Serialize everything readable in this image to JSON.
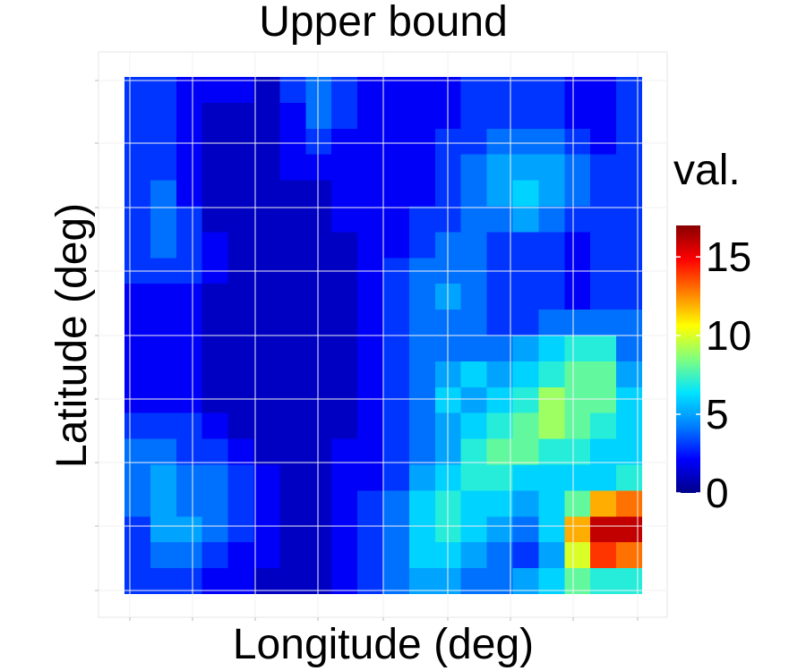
{
  "chart_data": {
    "type": "heatmap",
    "title": "Upper bound",
    "xlabel": "Longitude (deg)",
    "ylabel": "Latitude (deg)",
    "legend": {
      "title": "val.",
      "placement": "right",
      "range": [
        0,
        17
      ],
      "ticks": [
        0,
        5,
        10,
        15
      ],
      "tick_labels": [
        "0",
        "5",
        "10",
        "15"
      ]
    },
    "colorscale": [
      "#00008b",
      "#0000ff",
      "#0080ff",
      "#00e5ff",
      "#80ff80",
      "#ffff00",
      "#ff8000",
      "#ff0000",
      "#8b0000"
    ],
    "grid": true,
    "x_tick_labels": [],
    "y_tick_labels": [],
    "z": [
      [
        3,
        3,
        2,
        2,
        2,
        1,
        3,
        4,
        3,
        2,
        2,
        2,
        2,
        3,
        3,
        3,
        3,
        2,
        2,
        3
      ],
      [
        3,
        3,
        2,
        1,
        1,
        1,
        2,
        4,
        3,
        2,
        2,
        2,
        2,
        3,
        3,
        3,
        3,
        2,
        2,
        3
      ],
      [
        3,
        3,
        2,
        1,
        1,
        1,
        2,
        3,
        2,
        2,
        2,
        2,
        3,
        3,
        4,
        4,
        4,
        3,
        2,
        3
      ],
      [
        3,
        3,
        2,
        1,
        1,
        1,
        2,
        2,
        2,
        2,
        2,
        2,
        3,
        4,
        5,
        5,
        5,
        4,
        3,
        3
      ],
      [
        3,
        4,
        2,
        1,
        1,
        1,
        1,
        1,
        2,
        2,
        2,
        2,
        3,
        4,
        5,
        6,
        5,
        4,
        3,
        3
      ],
      [
        3,
        4,
        3,
        1,
        1,
        1,
        1,
        1,
        2,
        2,
        2,
        3,
        3,
        4,
        4,
        5,
        4,
        3,
        3,
        3
      ],
      [
        3,
        4,
        3,
        2,
        1,
        1,
        1,
        1,
        1,
        2,
        2,
        3,
        4,
        4,
        3,
        3,
        3,
        2,
        3,
        3
      ],
      [
        3,
        3,
        3,
        2,
        1,
        1,
        1,
        1,
        1,
        2,
        3,
        4,
        4,
        4,
        3,
        3,
        3,
        2,
        3,
        3
      ],
      [
        2,
        2,
        2,
        1,
        1,
        1,
        1,
        1,
        1,
        2,
        3,
        4,
        5,
        4,
        3,
        3,
        3,
        2,
        3,
        3
      ],
      [
        2,
        2,
        2,
        1,
        1,
        1,
        1,
        1,
        1,
        2,
        3,
        4,
        4,
        4,
        3,
        3,
        4,
        4,
        4,
        4
      ],
      [
        2,
        2,
        2,
        1,
        1,
        1,
        1,
        1,
        1,
        2,
        3,
        4,
        4,
        4,
        4,
        5,
        6,
        7,
        7,
        4
      ],
      [
        2,
        2,
        2,
        1,
        1,
        1,
        1,
        1,
        1,
        2,
        3,
        4,
        5,
        6,
        5,
        6,
        7,
        8,
        8,
        5
      ],
      [
        2,
        2,
        2,
        1,
        1,
        1,
        1,
        1,
        1,
        2,
        3,
        4,
        6,
        5,
        6,
        7,
        9,
        8,
        8,
        6
      ],
      [
        3,
        3,
        3,
        2,
        1,
        1,
        1,
        1,
        1,
        2,
        3,
        4,
        5,
        6,
        7,
        8,
        9,
        8,
        7,
        6
      ],
      [
        4,
        4,
        3,
        3,
        2,
        1,
        1,
        1,
        2,
        2,
        3,
        4,
        5,
        7,
        8,
        8,
        7,
        7,
        6,
        6
      ],
      [
        4,
        5,
        4,
        4,
        3,
        2,
        1,
        1,
        2,
        2,
        3,
        5,
        6,
        7,
        7,
        6,
        6,
        6,
        6,
        7
      ],
      [
        4,
        5,
        4,
        4,
        3,
        2,
        1,
        1,
        2,
        3,
        4,
        6,
        7,
        6,
        6,
        5,
        6,
        8,
        12,
        13
      ],
      [
        3,
        5,
        5,
        4,
        3,
        2,
        1,
        1,
        2,
        3,
        4,
        6,
        7,
        6,
        5,
        4,
        6,
        12,
        16,
        16
      ],
      [
        3,
        4,
        4,
        3,
        2,
        2,
        1,
        1,
        2,
        3,
        4,
        6,
        6,
        5,
        4,
        3,
        5,
        10,
        14,
        13
      ],
      [
        3,
        3,
        3,
        2,
        2,
        1,
        1,
        1,
        2,
        3,
        4,
        5,
        5,
        4,
        4,
        5,
        6,
        8,
        7,
        7
      ]
    ]
  }
}
